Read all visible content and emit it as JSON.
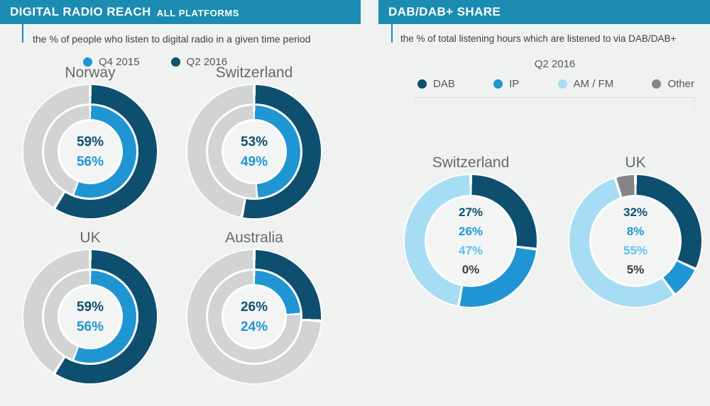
{
  "colors": {
    "header_bg": "#1b8bb2",
    "header_text": "#ffffff",
    "navy": "#0e4f70",
    "blue": "#1f96d3",
    "light_blue": "#a7ddf4",
    "light_blue_text": "#5ec2ee",
    "other_gray": "#828487",
    "ring_track": "#d2d3d4",
    "background": "#f0f1f1",
    "hole_bg": "#f3f5f5",
    "text_dark": "#3c3d3f",
    "subtitle_text": "#414042",
    "country_title_text": "#68696c",
    "legend_text": "#56575a"
  },
  "chart_data": [
    {
      "id": "digital-radio-reach",
      "type": "donut",
      "title": "DIGITAL RADIO REACH",
      "title_suffix": "ALL PLATFORMS",
      "subtitle": "the % of people who listen to digital radio in a given time period",
      "unit": "%",
      "legend": [
        {
          "label": "Q4 2015",
          "color": "#1f96d3"
        },
        {
          "label": "Q2 2016",
          "color": "#0e4f70"
        }
      ],
      "rings": [
        "outer = Q2 2016 (navy)",
        "inner = Q4 2015 (blue)"
      ],
      "countries": [
        {
          "name": "Norway",
          "q2_2016": 59,
          "q4_2015": 56
        },
        {
          "name": "Switzerland",
          "q2_2016": 53,
          "q4_2015": 49
        },
        {
          "name": "UK",
          "q2_2016": 59,
          "q4_2015": 56
        },
        {
          "name": "Australia",
          "q2_2016": 26,
          "q4_2015": 24
        }
      ]
    },
    {
      "id": "dab-share",
      "type": "donut",
      "title": "DAB/DAB+ SHARE",
      "subtitle": "the % of total listening hours which are listened to via DAB/DAB+",
      "period": "Q2 2016",
      "unit": "%",
      "legend": [
        {
          "label": "DAB",
          "color": "#0e4f70"
        },
        {
          "label": "IP",
          "color": "#1f96d3"
        },
        {
          "label": "AM / FM",
          "color": "#a7ddf4"
        },
        {
          "label": "Other",
          "color": "#828487"
        }
      ],
      "countries": [
        {
          "name": "Switzerland",
          "values": {
            "DAB": 27,
            "IP": 26,
            "AM / FM": 47,
            "Other": 0
          }
        },
        {
          "name": "UK",
          "values": {
            "DAB": 32,
            "IP": 8,
            "AM / FM": 55,
            "Other": 5
          }
        }
      ]
    }
  ]
}
